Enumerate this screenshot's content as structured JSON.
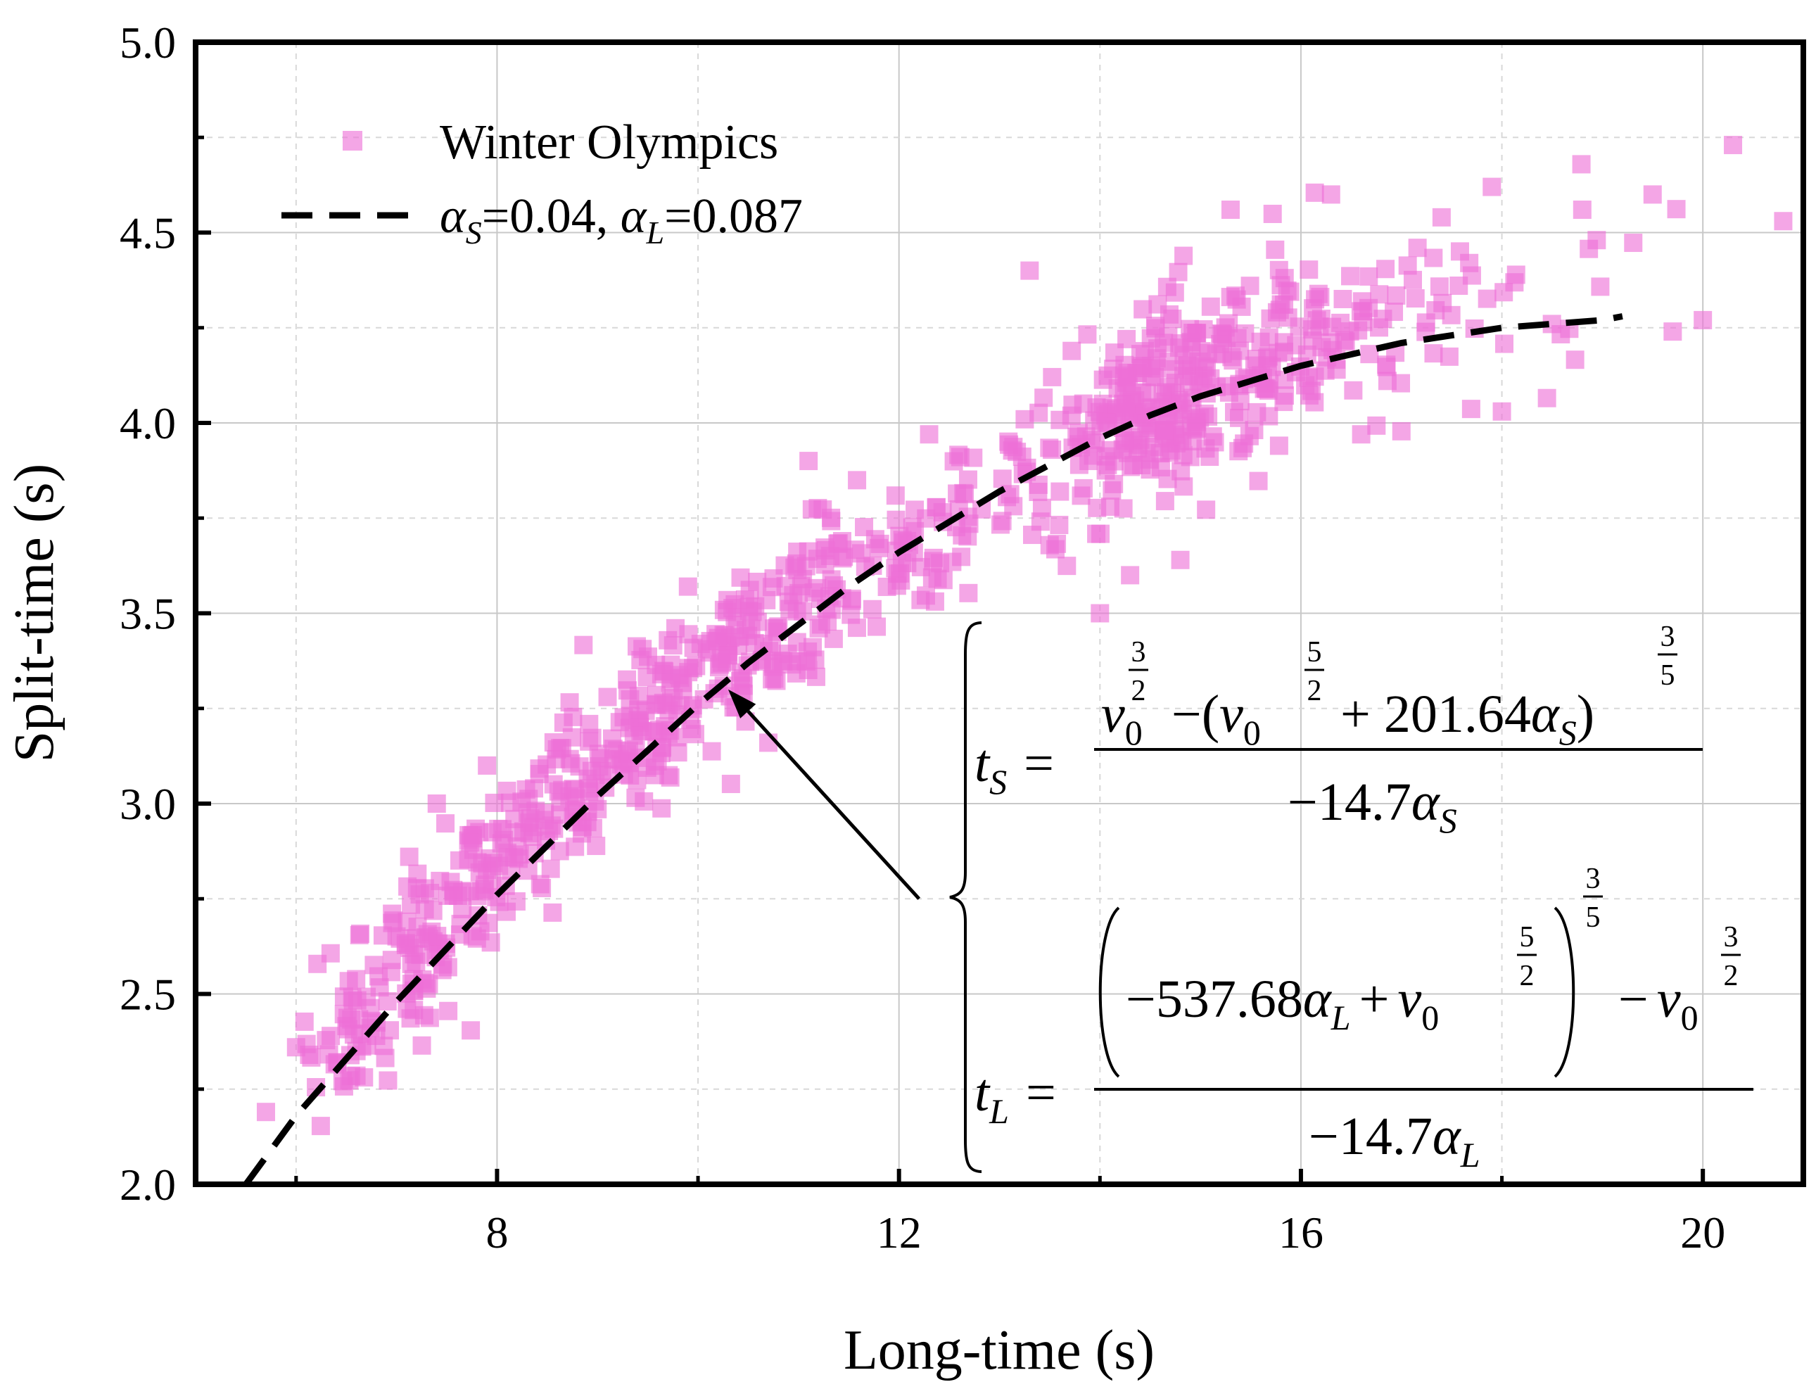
{
  "chart_data": {
    "type": "scatter",
    "xlabel": "Long-time (s)",
    "ylabel": "Split-time (s)",
    "xlim": [
      5.0,
      21.0
    ],
    "ylim": [
      2.0,
      5.0
    ],
    "x_ticks": [
      8,
      12,
      16,
      20
    ],
    "y_ticks": [
      2.0,
      2.5,
      3.0,
      3.5,
      4.0,
      4.5,
      5.0
    ],
    "x_tick_labels": [
      "8",
      "12",
      "16",
      "20"
    ],
    "y_tick_labels": [
      "2.0",
      "2.5",
      "3.0",
      "3.5",
      "4.0",
      "4.5",
      "5.0"
    ],
    "grid": true,
    "legend_position": "top-left",
    "series": [
      {
        "name": "Winter Olympics",
        "kind": "scatter",
        "marker": "square",
        "color": "#ee6fd6",
        "clusters": [
          {
            "cx": 6.6,
            "cy": 2.38,
            "sx": 0.25,
            "sy": 0.09,
            "n": 45
          },
          {
            "cx": 7.2,
            "cy": 2.6,
            "sx": 0.25,
            "sy": 0.11,
            "n": 70
          },
          {
            "cx": 7.9,
            "cy": 2.82,
            "sx": 0.28,
            "sy": 0.1,
            "n": 70
          },
          {
            "cx": 8.7,
            "cy": 3.03,
            "sx": 0.3,
            "sy": 0.1,
            "n": 75
          },
          {
            "cx": 9.5,
            "cy": 3.22,
            "sx": 0.3,
            "sy": 0.09,
            "n": 80
          },
          {
            "cx": 10.3,
            "cy": 3.38,
            "sx": 0.35,
            "sy": 0.09,
            "n": 85
          },
          {
            "cx": 11.2,
            "cy": 3.56,
            "sx": 0.35,
            "sy": 0.1,
            "n": 75
          },
          {
            "cx": 12.3,
            "cy": 3.72,
            "sx": 0.4,
            "sy": 0.1,
            "n": 60
          },
          {
            "cx": 13.7,
            "cy": 3.92,
            "sx": 0.35,
            "sy": 0.12,
            "n": 60
          },
          {
            "cx": 14.6,
            "cy": 4.06,
            "sx": 0.4,
            "sy": 0.12,
            "n": 170
          },
          {
            "cx": 15.6,
            "cy": 4.15,
            "sx": 0.5,
            "sy": 0.13,
            "n": 110
          },
          {
            "cx": 16.9,
            "cy": 4.28,
            "sx": 0.6,
            "sy": 0.12,
            "n": 45
          },
          {
            "cx": 18.5,
            "cy": 4.35,
            "sx": 0.7,
            "sy": 0.12,
            "n": 20
          }
        ],
        "outliers": [
          {
            "x": 5.7,
            "y": 2.19
          },
          {
            "x": 6.0,
            "y": 2.36
          },
          {
            "x": 7.4,
            "y": 3.0
          },
          {
            "x": 7.9,
            "y": 3.1
          },
          {
            "x": 9.1,
            "y": 3.28
          },
          {
            "x": 9.9,
            "y": 3.57
          },
          {
            "x": 10.7,
            "y": 3.16
          },
          {
            "x": 11.1,
            "y": 3.9
          },
          {
            "x": 12.3,
            "y": 3.97
          },
          {
            "x": 13.3,
            "y": 4.4
          },
          {
            "x": 14.0,
            "y": 3.5
          },
          {
            "x": 14.3,
            "y": 3.6
          },
          {
            "x": 14.8,
            "y": 3.64
          },
          {
            "x": 15.3,
            "y": 4.56
          },
          {
            "x": 16.3,
            "y": 4.6
          },
          {
            "x": 16.6,
            "y": 3.97
          },
          {
            "x": 17.4,
            "y": 4.54
          },
          {
            "x": 17.9,
            "y": 4.62
          },
          {
            "x": 18.0,
            "y": 4.03
          },
          {
            "x": 18.8,
            "y": 4.56
          },
          {
            "x": 19.5,
            "y": 4.6
          },
          {
            "x": 20.0,
            "y": 4.27
          },
          {
            "x": 20.3,
            "y": 4.73
          },
          {
            "x": 20.8,
            "y": 4.53
          },
          {
            "x": 19.7,
            "y": 4.24
          }
        ]
      },
      {
        "name": "αS=0.04, αL=0.087",
        "kind": "line",
        "style": "dashed",
        "color": "#000000",
        "x": [
          5.5,
          6.0,
          6.5,
          7.0,
          7.5,
          8.0,
          8.5,
          9.0,
          9.5,
          10.0,
          10.5,
          11.0,
          11.5,
          12.0,
          12.5,
          13.0,
          13.5,
          14.0,
          14.5,
          15.0,
          15.5,
          16.0,
          16.5,
          17.0,
          17.5,
          18.0,
          18.5,
          19.0,
          19.2
        ],
        "y": [
          2.0,
          2.18,
          2.33,
          2.48,
          2.62,
          2.76,
          2.89,
          3.02,
          3.14,
          3.26,
          3.37,
          3.47,
          3.57,
          3.66,
          3.74,
          3.82,
          3.89,
          3.96,
          4.02,
          4.07,
          4.11,
          4.15,
          4.18,
          4.21,
          4.23,
          4.25,
          4.26,
          4.27,
          4.28
        ]
      }
    ],
    "legend": {
      "scatter_label": "Winter Olympics",
      "line_label_parts": [
        "α",
        "S",
        "=0.04, ",
        "α",
        "L",
        "=0.087"
      ]
    },
    "annotation": {
      "arrow_from": {
        "x": 12.2,
        "y": 2.75
      },
      "arrow_to": {
        "x": 10.3,
        "y": 3.3
      },
      "equation_ts": {
        "lhs": [
          "t",
          "S",
          "="
        ],
        "num": [
          "v",
          "0",
          "3",
          "2",
          "−(",
          "v",
          "0",
          "5",
          "2",
          "+ 201.64",
          "α",
          "S",
          ")",
          "3",
          "5"
        ],
        "den": [
          "−14.7",
          "α",
          "S"
        ]
      },
      "equation_tl": {
        "lhs": [
          "t",
          "L",
          "="
        ],
        "num": [
          "−537.68",
          "α",
          "L",
          "+",
          "v",
          "0",
          "5",
          "2",
          "3",
          "5",
          "−",
          "v",
          "0",
          "3",
          "2"
        ],
        "den": [
          "−14.7",
          "α",
          "L"
        ]
      }
    }
  }
}
